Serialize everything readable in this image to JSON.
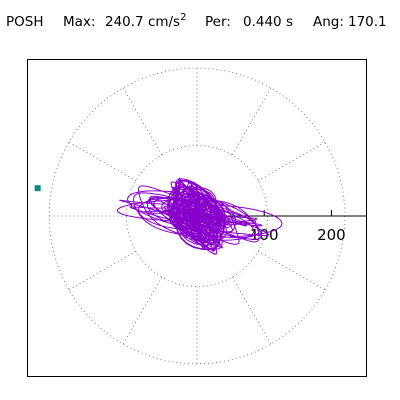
{
  "header": {
    "station": "POSH",
    "max_label": "Max:",
    "max_value": "240.7 cm/s",
    "max_exp": "2",
    "per_label": "Per:",
    "per_value": "0.440 s",
    "ang_label": "Ang:",
    "ang_value": "170.1"
  },
  "chart_data": {
    "type": "scatter",
    "title": "",
    "xlabel": "",
    "ylabel": "",
    "radial_ticks": [
      "100",
      "200"
    ],
    "radial_range": [
      0,
      220
    ],
    "grid": "polar-dotted",
    "spoke_step_deg": 30,
    "peak_marker": {
      "amplitude": 240.7,
      "angle_deg": 170.1,
      "color": "#0d8c7a"
    },
    "trace_color": "#8800cc",
    "ring_color": "#808080"
  }
}
